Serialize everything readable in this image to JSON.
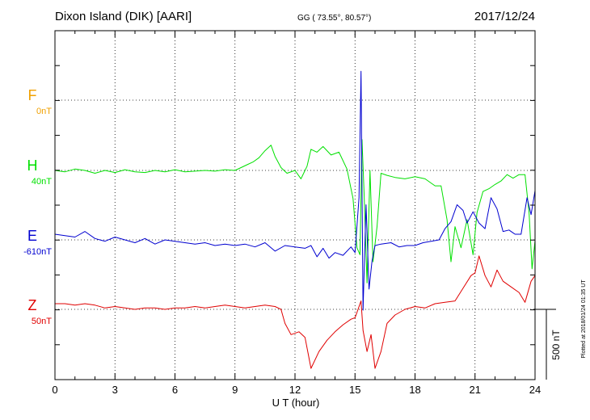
{
  "header": {
    "station": "Dixon Island (DIK)  [AARI]",
    "coords": "GG ( 73.55°,  80.57°)",
    "date": "2017/12/24"
  },
  "footer": {
    "plotted": "Plotted at 2018/01/24 01:35 UT"
  },
  "colors": {
    "F": "#f0a000",
    "H": "#00e000",
    "E": "#0000d0",
    "Z": "#e00000",
    "axis": "#000000",
    "grid": "#000000"
  },
  "chart_data": {
    "type": "line",
    "xlabel": "U T (hour)",
    "xlim": [
      0,
      24
    ],
    "x_ticks": [
      "0",
      "3",
      "6",
      "9",
      "12",
      "15",
      "18",
      "21",
      "24"
    ],
    "scale_bar_label": "500 nT",
    "series": [
      {
        "name": "F",
        "offset_label": "0nT",
        "x": [],
        "y": []
      },
      {
        "name": "H",
        "offset_label": "40nT",
        "x": [
          0,
          0.5,
          1,
          1.5,
          2,
          2.5,
          3,
          3.5,
          4,
          4.5,
          5,
          5.5,
          6,
          6.5,
          7,
          7.5,
          8,
          8.5,
          9,
          9.3,
          9.6,
          9.9,
          10.2,
          10.5,
          10.8,
          11.0,
          11.3,
          11.6,
          12.0,
          12.3,
          12.6,
          12.8,
          13.1,
          13.4,
          13.8,
          14.2,
          14.6,
          14.9,
          15.1,
          15.25,
          15.35,
          15.45,
          15.6,
          15.75,
          15.9,
          16.1,
          16.3,
          16.6,
          17.0,
          17.5,
          18.0,
          18.5,
          19.0,
          19.3,
          19.6,
          19.8,
          20.0,
          20.3,
          20.6,
          20.9,
          21.1,
          21.4,
          21.7,
          22.0,
          22.3,
          22.6,
          22.9,
          23.2,
          23.5,
          23.7,
          23.85,
          24.0
        ],
        "y": [
          0,
          -10,
          10,
          0,
          -20,
          0,
          -15,
          5,
          -10,
          -15,
          0,
          -10,
          5,
          -10,
          -5,
          0,
          -5,
          5,
          0,
          20,
          40,
          60,
          90,
          140,
          180,
          100,
          20,
          -20,
          0,
          -60,
          30,
          150,
          130,
          170,
          110,
          130,
          10,
          -200,
          -550,
          -600,
          220,
          -150,
          -800,
          0,
          -650,
          -400,
          -20,
          -35,
          -50,
          -60,
          -45,
          -60,
          -110,
          -110,
          -350,
          -650,
          -400,
          -550,
          -350,
          -600,
          -300,
          -150,
          -130,
          -100,
          -75,
          -30,
          -55,
          -30,
          -30,
          -300,
          -700,
          -500
        ]
      },
      {
        "name": "E",
        "offset_label": "-610nT",
        "x": [
          0,
          0.5,
          1,
          1.5,
          2,
          2.5,
          3,
          3.5,
          4,
          4.5,
          5,
          5.5,
          6,
          6.5,
          7,
          7.5,
          8,
          8.5,
          9,
          9.5,
          10,
          10.5,
          11,
          11.5,
          12,
          12.5,
          12.8,
          13.1,
          13.4,
          13.7,
          14.0,
          14.4,
          14.8,
          15.0,
          15.2,
          15.3,
          15.4,
          15.55,
          15.7,
          15.85,
          16.0,
          16.3,
          16.8,
          17.2,
          17.6,
          18.0,
          18.4,
          18.8,
          19.2,
          19.5,
          19.8,
          20.1,
          20.4,
          20.6,
          20.9,
          21.2,
          21.5,
          21.8,
          22.1,
          22.4,
          22.7,
          23.0,
          23.3,
          23.6,
          23.8,
          24.0
        ],
        "y": [
          40,
          30,
          20,
          60,
          10,
          -10,
          20,
          0,
          -20,
          10,
          -30,
          0,
          -10,
          -20,
          -30,
          -20,
          -40,
          -30,
          -40,
          -30,
          -50,
          -20,
          -80,
          -40,
          -50,
          -60,
          -40,
          -120,
          -60,
          -130,
          -90,
          -110,
          -50,
          -90,
          300,
          1200,
          -500,
          250,
          -350,
          -150,
          -40,
          -30,
          -20,
          -50,
          -40,
          -40,
          -20,
          -10,
          0,
          80,
          130,
          250,
          210,
          120,
          200,
          120,
          80,
          300,
          220,
          60,
          70,
          40,
          40,
          300,
          180,
          350
        ]
      },
      {
        "name": "Z",
        "offset_label": "50nT",
        "x": [
          0,
          0.5,
          1,
          1.5,
          2,
          2.5,
          3,
          3.5,
          4,
          4.5,
          5,
          5.5,
          6,
          6.5,
          7,
          7.5,
          8,
          8.5,
          9,
          9.5,
          10,
          10.5,
          11.0,
          11.3,
          11.5,
          11.8,
          12.2,
          12.5,
          12.8,
          13.2,
          13.6,
          14.0,
          14.4,
          14.8,
          15.0,
          15.3,
          15.4,
          15.6,
          15.8,
          16.0,
          16.3,
          16.6,
          17.0,
          17.5,
          18.0,
          18.5,
          19.0,
          19.5,
          20.0,
          20.4,
          20.8,
          21.0,
          21.2,
          21.5,
          21.8,
          22.1,
          22.4,
          22.8,
          23.2,
          23.5,
          23.8,
          24.0
        ],
        "y": [
          40,
          40,
          30,
          40,
          30,
          10,
          20,
          10,
          0,
          10,
          10,
          0,
          10,
          10,
          20,
          10,
          20,
          30,
          20,
          10,
          20,
          30,
          20,
          0,
          -100,
          -180,
          -160,
          -200,
          -420,
          -300,
          -220,
          -160,
          -110,
          -70,
          -60,
          60,
          -150,
          -300,
          -180,
          -420,
          -300,
          -100,
          -40,
          0,
          20,
          10,
          40,
          50,
          60,
          150,
          240,
          260,
          380,
          240,
          160,
          280,
          200,
          160,
          120,
          50,
          200,
          240
        ]
      }
    ]
  }
}
